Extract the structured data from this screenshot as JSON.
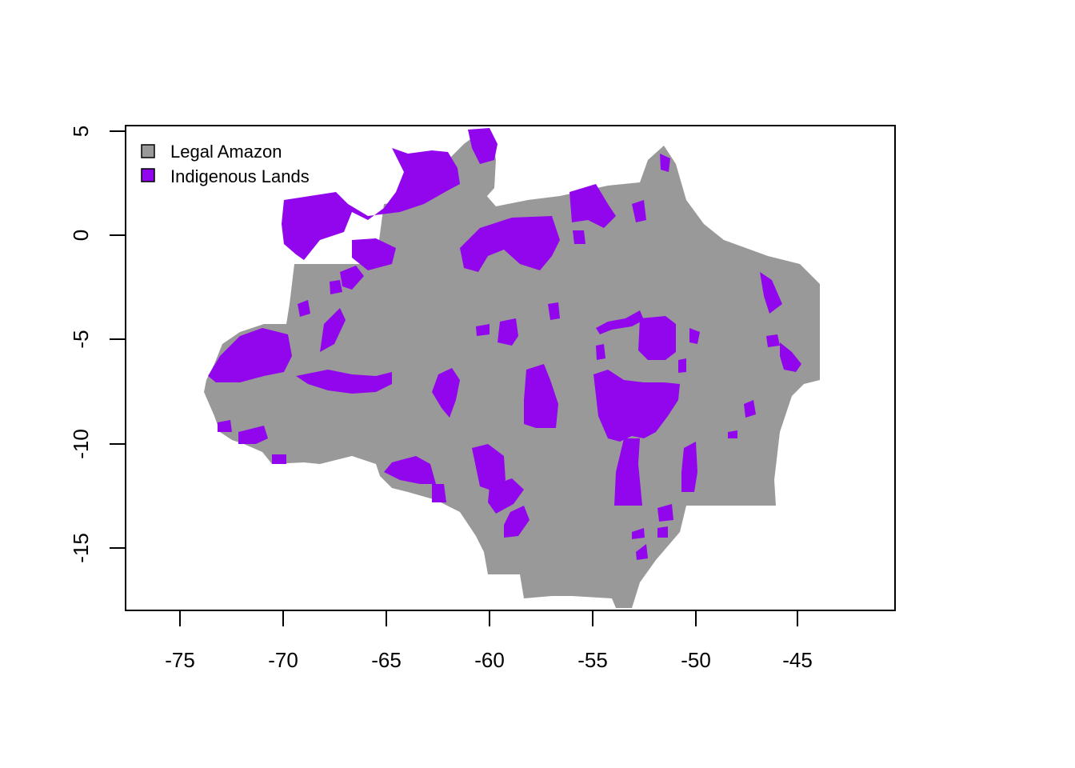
{
  "map": {
    "legend": {
      "placement": "top-left",
      "items": [
        {
          "label": "Legal Amazon",
          "color": "#999999"
        },
        {
          "label": "Indigenous Lands",
          "color": "#9206EE"
        }
      ]
    },
    "x_axis": {
      "ticks": [
        "-75",
        "-70",
        "-65",
        "-60",
        "-55",
        "-50",
        "-45"
      ],
      "range": [
        -77.5,
        -40.5
      ]
    },
    "y_axis": {
      "ticks": [
        "5",
        "0",
        "-5",
        "-10",
        "-15"
      ],
      "range": [
        -18.2,
        5.2
      ]
    },
    "colors": {
      "legal_amazon": "#999999",
      "indigenous_lands": "#9206EE",
      "frame": "#000000"
    }
  },
  "chart_data": {
    "type": "map",
    "title": "",
    "xlabel": "",
    "ylabel": "",
    "xlim": [
      -77.5,
      -40.5
    ],
    "ylim": [
      -18.2,
      5.2
    ],
    "xticks": [
      -75,
      -70,
      -65,
      -60,
      -55,
      -50,
      -45
    ],
    "yticks": [
      5,
      0,
      -5,
      -10,
      -15
    ],
    "grid": false,
    "legend": [
      "Legal Amazon",
      "Indigenous Lands"
    ],
    "legend_placement": "top-left",
    "layers": [
      {
        "name": "Legal Amazon",
        "color": "#999999",
        "kind": "region-fill"
      },
      {
        "name": "Indigenous Lands",
        "color": "#9206EE",
        "kind": "region-fill"
      }
    ]
  }
}
